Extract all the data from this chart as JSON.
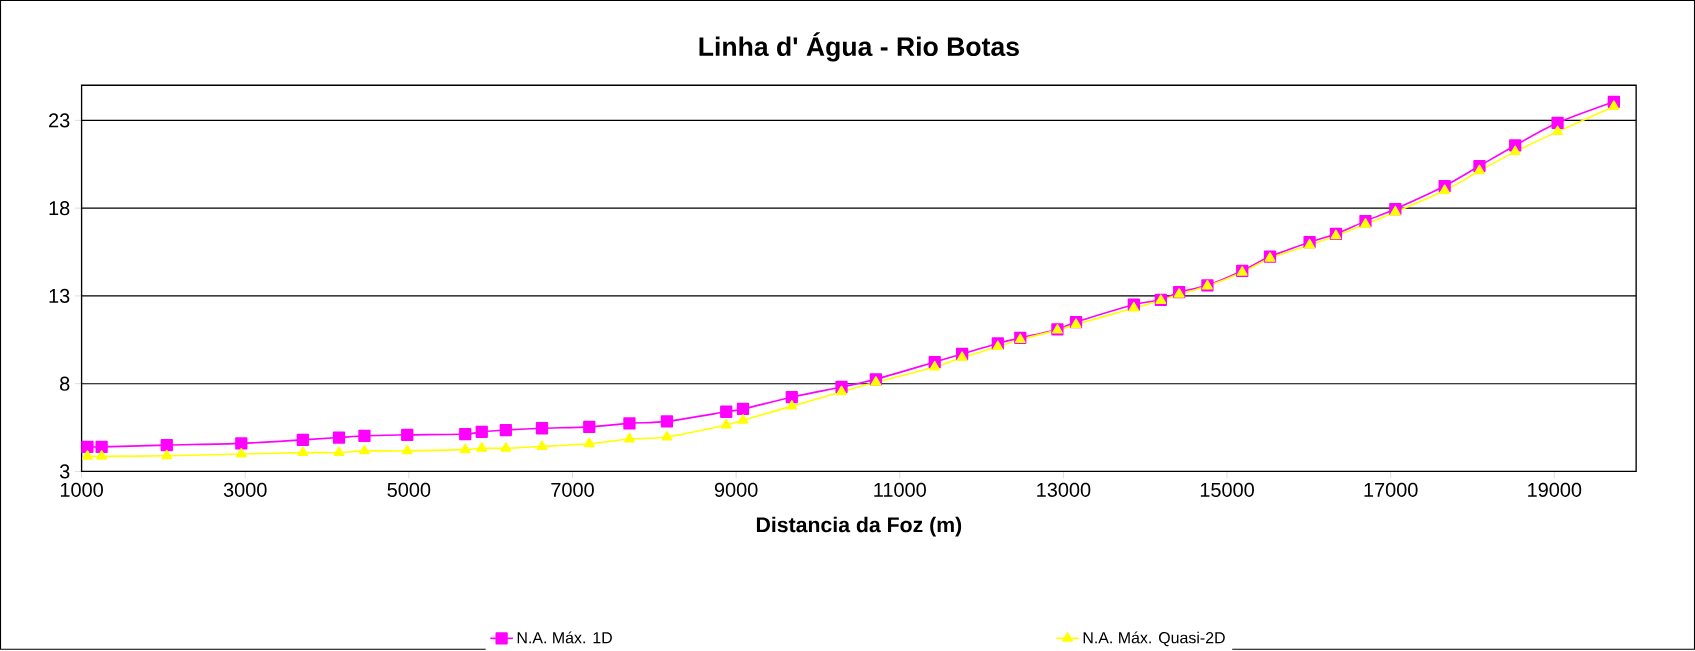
{
  "chart_data": {
    "type": "line",
    "title": "Linha d' Água - Rio Botas",
    "xlabel": "Distancia da Foz (m)",
    "x": [
      1071,
      1245,
      2041,
      2952,
      3704,
      4146,
      4457,
      4980,
      5689,
      5891,
      6185,
      6627,
      7205,
      7696,
      8154,
      8879,
      9084,
      9680,
      10288,
      10708,
      11427,
      11762,
      12198,
      12473,
      12927,
      13154,
      13861,
      14191,
      14415,
      14760,
      15186,
      15525,
      16009,
      16331,
      16692,
      17057,
      17660,
      18085,
      18522,
      19040,
      19728
    ],
    "series": [
      {
        "name": "N.A. Máx. 1D",
        "color": "#ff00ff",
        "marker": "square",
        "values": [
          4.4,
          4.4,
          4.5,
          4.6,
          4.8,
          4.93,
          5.03,
          5.08,
          5.13,
          5.26,
          5.36,
          5.46,
          5.54,
          5.74,
          5.85,
          6.4,
          6.56,
          7.23,
          7.81,
          8.25,
          9.23,
          9.69,
          10.29,
          10.61,
          11.09,
          11.51,
          12.5,
          12.78,
          13.22,
          13.6,
          14.43,
          15.24,
          16.06,
          16.53,
          17.26,
          17.95,
          19.26,
          20.4,
          21.57,
          22.86,
          24.06
        ]
      },
      {
        "name": "N.A. Máx. Quasi-2D",
        "color": "#ffff00",
        "marker": "triangle",
        "values": [
          3.86,
          3.86,
          3.89,
          3.99,
          4.07,
          4.07,
          4.17,
          4.17,
          4.24,
          4.32,
          4.32,
          4.42,
          4.58,
          4.85,
          4.96,
          5.64,
          5.92,
          6.72,
          7.54,
          8.08,
          8.95,
          9.49,
          10.11,
          10.51,
          11.05,
          11.37,
          12.31,
          12.74,
          13.09,
          13.56,
          14.35,
          15.15,
          15.9,
          16.43,
          17.08,
          17.78,
          19.0,
          20.13,
          21.22,
          22.36,
          23.79
        ]
      }
    ],
    "xlim": [
      1000,
      20000
    ],
    "xticks": [
      1000,
      3000,
      5000,
      7000,
      9000,
      11000,
      13000,
      15000,
      17000,
      19000
    ],
    "ylim": [
      3,
      25
    ],
    "yticks": [
      3,
      8,
      13,
      18,
      23
    ],
    "grid": "y",
    "legend": "bottom",
    "line_style": "solid"
  }
}
